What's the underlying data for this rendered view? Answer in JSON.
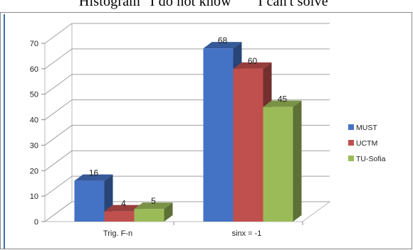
{
  "caption": "Histogram \"I do not know\"    \"I can't solve\"",
  "chart_data": {
    "type": "bar",
    "categories": [
      "Trig. F-n",
      "sinx = -1"
    ],
    "series": [
      {
        "name": "MUST",
        "values": [
          16,
          68
        ],
        "color": "#4472c4"
      },
      {
        "name": "UCTM",
        "values": [
          4,
          60
        ],
        "color": "#c0504d"
      },
      {
        "name": "TU-Sofia",
        "values": [
          5,
          45
        ],
        "color": "#9bbb59"
      }
    ],
    "ylim": [
      0,
      70
    ],
    "yticks": [
      0,
      10,
      20,
      30,
      40,
      50,
      60,
      70
    ],
    "data_labels": true,
    "grid": true,
    "legend": "right",
    "style": "3d-column"
  }
}
